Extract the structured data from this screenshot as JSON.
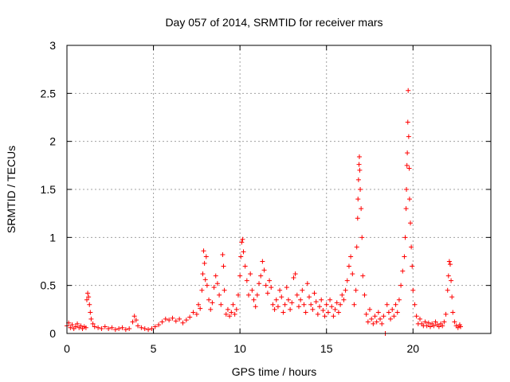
{
  "chart_data": {
    "type": "scatter",
    "title": "Day 057 of 2014, SRMTID for receiver mars",
    "xlabel": "GPS time / hours",
    "ylabel": "SRMTID / TECUs",
    "xlim": [
      0,
      24.5
    ],
    "ylim": [
      0,
      3
    ],
    "xticks": [
      0,
      5,
      10,
      15,
      20
    ],
    "xtick_labels": [
      "0",
      "5",
      "10",
      "15",
      "20"
    ],
    "yticks": [
      0,
      0.5,
      1,
      1.5,
      2,
      2.5,
      3
    ],
    "ytick_labels": [
      "0",
      "0.5",
      "1",
      "1.5",
      "2",
      "2.5",
      "3"
    ],
    "grid": true,
    "marker": "+",
    "series": [
      {
        "name": "SRMTID",
        "color": "#ff0000",
        "points": [
          [
            0.0,
            0.08
          ],
          [
            0.1,
            0.11
          ],
          [
            0.2,
            0.06
          ],
          [
            0.3,
            0.09
          ],
          [
            0.4,
            0.05
          ],
          [
            0.5,
            0.07
          ],
          [
            0.6,
            0.1
          ],
          [
            0.7,
            0.06
          ],
          [
            0.8,
            0.08
          ],
          [
            0.9,
            0.05
          ],
          [
            1.0,
            0.07
          ],
          [
            1.1,
            0.06
          ],
          [
            1.15,
            0.35
          ],
          [
            1.2,
            0.42
          ],
          [
            1.25,
            0.38
          ],
          [
            1.3,
            0.3
          ],
          [
            1.35,
            0.22
          ],
          [
            1.4,
            0.15
          ],
          [
            1.5,
            0.1
          ],
          [
            1.6,
            0.07
          ],
          [
            1.8,
            0.06
          ],
          [
            2.0,
            0.05
          ],
          [
            2.2,
            0.07
          ],
          [
            2.4,
            0.05
          ],
          [
            2.6,
            0.06
          ],
          [
            2.8,
            0.04
          ],
          [
            3.0,
            0.05
          ],
          [
            3.2,
            0.06
          ],
          [
            3.4,
            0.04
          ],
          [
            3.6,
            0.05
          ],
          [
            3.8,
            0.12
          ],
          [
            3.9,
            0.18
          ],
          [
            4.0,
            0.14
          ],
          [
            4.1,
            0.08
          ],
          [
            4.3,
            0.06
          ],
          [
            4.5,
            0.05
          ],
          [
            4.7,
            0.04
          ],
          [
            4.9,
            0.05
          ],
          [
            5.1,
            0.07
          ],
          [
            5.3,
            0.09
          ],
          [
            5.5,
            0.12
          ],
          [
            5.7,
            0.15
          ],
          [
            5.9,
            0.14
          ],
          [
            6.1,
            0.16
          ],
          [
            6.3,
            0.13
          ],
          [
            6.5,
            0.15
          ],
          [
            6.7,
            0.11
          ],
          [
            6.9,
            0.14
          ],
          [
            7.1,
            0.17
          ],
          [
            7.3,
            0.22
          ],
          [
            7.5,
            0.2
          ],
          [
            7.6,
            0.3
          ],
          [
            7.7,
            0.26
          ],
          [
            7.8,
            0.45
          ],
          [
            7.85,
            0.62
          ],
          [
            7.9,
            0.86
          ],
          [
            7.95,
            0.73
          ],
          [
            8.0,
            0.56
          ],
          [
            8.05,
            0.8
          ],
          [
            8.1,
            0.5
          ],
          [
            8.2,
            0.35
          ],
          [
            8.3,
            0.25
          ],
          [
            8.4,
            0.32
          ],
          [
            8.5,
            0.48
          ],
          [
            8.6,
            0.6
          ],
          [
            8.7,
            0.52
          ],
          [
            8.8,
            0.4
          ],
          [
            8.9,
            0.3
          ],
          [
            9.0,
            0.82
          ],
          [
            9.05,
            0.7
          ],
          [
            9.1,
            0.45
          ],
          [
            9.2,
            0.2
          ],
          [
            9.3,
            0.25
          ],
          [
            9.4,
            0.18
          ],
          [
            9.5,
            0.22
          ],
          [
            9.6,
            0.3
          ],
          [
            9.7,
            0.2
          ],
          [
            9.8,
            0.25
          ],
          [
            9.9,
            0.4
          ],
          [
            10.0,
            0.6
          ],
          [
            10.05,
            0.8
          ],
          [
            10.1,
            0.95
          ],
          [
            10.15,
            0.98
          ],
          [
            10.2,
            0.85
          ],
          [
            10.3,
            0.7
          ],
          [
            10.4,
            0.55
          ],
          [
            10.5,
            0.4
          ],
          [
            10.6,
            0.62
          ],
          [
            10.7,
            0.45
          ],
          [
            10.8,
            0.35
          ],
          [
            10.9,
            0.28
          ],
          [
            11.0,
            0.4
          ],
          [
            11.1,
            0.52
          ],
          [
            11.2,
            0.6
          ],
          [
            11.3,
            0.75
          ],
          [
            11.4,
            0.66
          ],
          [
            11.5,
            0.5
          ],
          [
            11.6,
            0.42
          ],
          [
            11.7,
            0.55
          ],
          [
            11.8,
            0.48
          ],
          [
            11.9,
            0.3
          ],
          [
            12.0,
            0.25
          ],
          [
            12.1,
            0.35
          ],
          [
            12.2,
            0.28
          ],
          [
            12.3,
            0.45
          ],
          [
            12.4,
            0.38
          ],
          [
            12.5,
            0.22
          ],
          [
            12.6,
            0.3
          ],
          [
            12.7,
            0.48
          ],
          [
            12.8,
            0.35
          ],
          [
            12.9,
            0.25
          ],
          [
            13.0,
            0.32
          ],
          [
            13.1,
            0.58
          ],
          [
            13.2,
            0.62
          ],
          [
            13.3,
            0.4
          ],
          [
            13.4,
            0.28
          ],
          [
            13.5,
            0.35
          ],
          [
            13.6,
            0.45
          ],
          [
            13.7,
            0.3
          ],
          [
            13.8,
            0.22
          ],
          [
            13.9,
            0.52
          ],
          [
            14.0,
            0.38
          ],
          [
            14.1,
            0.3
          ],
          [
            14.2,
            0.25
          ],
          [
            14.3,
            0.42
          ],
          [
            14.4,
            0.33
          ],
          [
            14.5,
            0.2
          ],
          [
            14.6,
            0.28
          ],
          [
            14.7,
            0.35
          ],
          [
            14.8,
            0.24
          ],
          [
            14.9,
            0.18
          ],
          [
            15.0,
            0.3
          ],
          [
            15.1,
            0.22
          ],
          [
            15.2,
            0.35
          ],
          [
            15.3,
            0.28
          ],
          [
            15.4,
            0.18
          ],
          [
            15.5,
            0.25
          ],
          [
            15.6,
            0.32
          ],
          [
            15.7,
            0.22
          ],
          [
            15.8,
            0.3
          ],
          [
            15.9,
            0.4
          ],
          [
            16.0,
            0.35
          ],
          [
            16.1,
            0.45
          ],
          [
            16.2,
            0.55
          ],
          [
            16.3,
            0.7
          ],
          [
            16.4,
            0.8
          ],
          [
            16.5,
            0.62
          ],
          [
            16.6,
            0.3
          ],
          [
            16.7,
            0.45
          ],
          [
            16.75,
            0.9
          ],
          [
            16.8,
            1.2
          ],
          [
            16.82,
            1.4
          ],
          [
            16.85,
            1.6
          ],
          [
            16.88,
            1.76
          ],
          [
            16.9,
            1.84
          ],
          [
            16.92,
            1.7
          ],
          [
            16.95,
            1.5
          ],
          [
            17.0,
            1.3
          ],
          [
            17.05,
            1.0
          ],
          [
            17.1,
            0.6
          ],
          [
            17.2,
            0.4
          ],
          [
            17.3,
            0.2
          ],
          [
            17.4,
            0.12
          ],
          [
            17.5,
            0.25
          ],
          [
            17.6,
            0.15
          ],
          [
            17.7,
            0.1
          ],
          [
            17.8,
            0.18
          ],
          [
            17.9,
            0.12
          ],
          [
            18.0,
            0.22
          ],
          [
            18.1,
            0.15
          ],
          [
            18.2,
            0.1
          ],
          [
            18.3,
            0.18
          ],
          [
            18.4,
            0.0
          ],
          [
            18.5,
            0.3
          ],
          [
            18.6,
            0.22
          ],
          [
            18.7,
            0.15
          ],
          [
            18.8,
            0.25
          ],
          [
            18.9,
            0.18
          ],
          [
            19.0,
            0.3
          ],
          [
            19.1,
            0.22
          ],
          [
            19.2,
            0.35
          ],
          [
            19.3,
            0.5
          ],
          [
            19.4,
            0.65
          ],
          [
            19.5,
            0.8
          ],
          [
            19.55,
            1.0
          ],
          [
            19.6,
            1.3
          ],
          [
            19.62,
            1.5
          ],
          [
            19.65,
            1.75
          ],
          [
            19.67,
            1.88
          ],
          [
            19.7,
            2.2
          ],
          [
            19.72,
            2.53
          ],
          [
            19.75,
            2.05
          ],
          [
            19.78,
            1.72
          ],
          [
            19.8,
            1.4
          ],
          [
            19.85,
            1.15
          ],
          [
            19.9,
            0.9
          ],
          [
            19.95,
            0.7
          ],
          [
            20.0,
            0.45
          ],
          [
            20.1,
            0.3
          ],
          [
            20.2,
            0.18
          ],
          [
            20.3,
            0.1
          ],
          [
            20.4,
            0.15
          ],
          [
            20.5,
            0.1
          ],
          [
            20.6,
            0.08
          ],
          [
            20.7,
            0.12
          ],
          [
            20.8,
            0.08
          ],
          [
            20.9,
            0.11
          ],
          [
            21.0,
            0.07
          ],
          [
            21.1,
            0.1
          ],
          [
            21.2,
            0.08
          ],
          [
            21.3,
            0.12
          ],
          [
            21.4,
            0.09
          ],
          [
            21.5,
            0.07
          ],
          [
            21.6,
            0.1
          ],
          [
            21.7,
            0.08
          ],
          [
            21.8,
            0.12
          ],
          [
            21.9,
            0.2
          ],
          [
            22.0,
            0.45
          ],
          [
            22.05,
            0.6
          ],
          [
            22.1,
            0.75
          ],
          [
            22.15,
            0.72
          ],
          [
            22.2,
            0.55
          ],
          [
            22.25,
            0.38
          ],
          [
            22.3,
            0.22
          ],
          [
            22.4,
            0.12
          ],
          [
            22.5,
            0.08
          ],
          [
            22.6,
            0.06
          ],
          [
            22.7,
            0.09
          ],
          [
            22.75,
            0.07
          ]
        ]
      }
    ]
  }
}
